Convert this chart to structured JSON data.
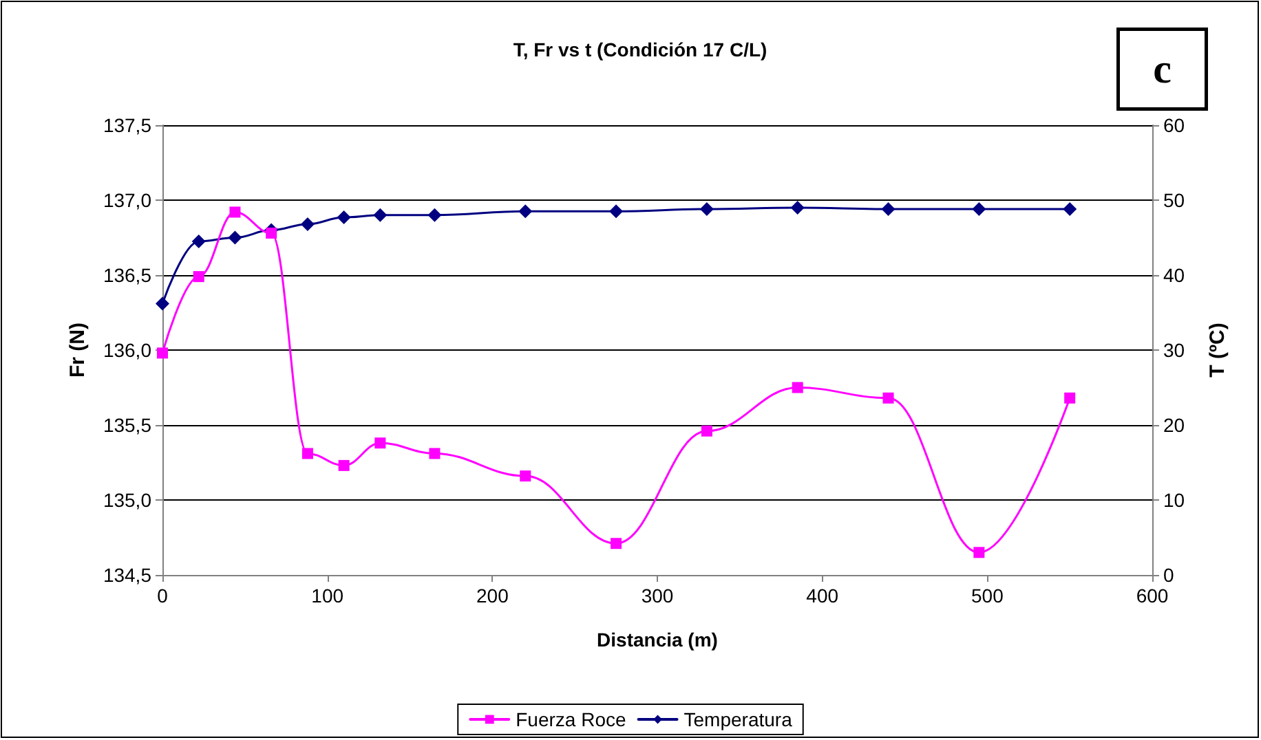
{
  "chart_data": {
    "type": "line",
    "title": "T, Fr vs t (Condición 17 C/L)",
    "xlabel": "Distancia (m)",
    "ylabel": "Fr (N)",
    "y2label": "T (ºC)",
    "annotations": [
      "c"
    ],
    "xlim": [
      0,
      600
    ],
    "xticks": [
      0,
      100,
      200,
      300,
      400,
      500,
      600
    ],
    "ylim": [
      134.5,
      137.5
    ],
    "yticks": [
      {
        "value": 134.5,
        "label": "134,5"
      },
      {
        "value": 135,
        "label": "135,0"
      },
      {
        "value": 135.5,
        "label": "135,5"
      },
      {
        "value": 136,
        "label": "136,0"
      },
      {
        "value": 136.5,
        "label": "136,5"
      },
      {
        "value": 137,
        "label": "137,0"
      },
      {
        "value": 137.5,
        "label": "137,5"
      }
    ],
    "y2lim": [
      0,
      60
    ],
    "y2ticks": [
      0,
      10,
      20,
      30,
      40,
      50,
      60
    ],
    "grid": "y",
    "legend": "bottom",
    "series": [
      {
        "name": "Fuerza Roce",
        "color": "#ff00ff",
        "marker": "square",
        "x": [
          0,
          22,
          44,
          66,
          88,
          110,
          132,
          165,
          220,
          275,
          330,
          385,
          440,
          495,
          550
        ],
        "values": [
          135.98,
          136.49,
          136.92,
          136.78,
          135.31,
          135.23,
          135.38,
          135.31,
          135.16,
          134.71,
          135.46,
          135.75,
          135.68,
          134.65,
          135.68
        ]
      },
      {
        "name": "Temperatura",
        "color": "#000080",
        "marker": "diamond",
        "axis": "y2",
        "x": [
          0,
          22,
          44,
          66,
          88,
          110,
          132,
          165,
          220,
          275,
          330,
          385,
          440,
          495,
          550
        ],
        "values": [
          36.2,
          44.5,
          45.0,
          46.0,
          46.8,
          47.7,
          48.0,
          48.0,
          48.5,
          48.5,
          48.8,
          49.0,
          48.8,
          48.8,
          48.8
        ]
      }
    ]
  }
}
